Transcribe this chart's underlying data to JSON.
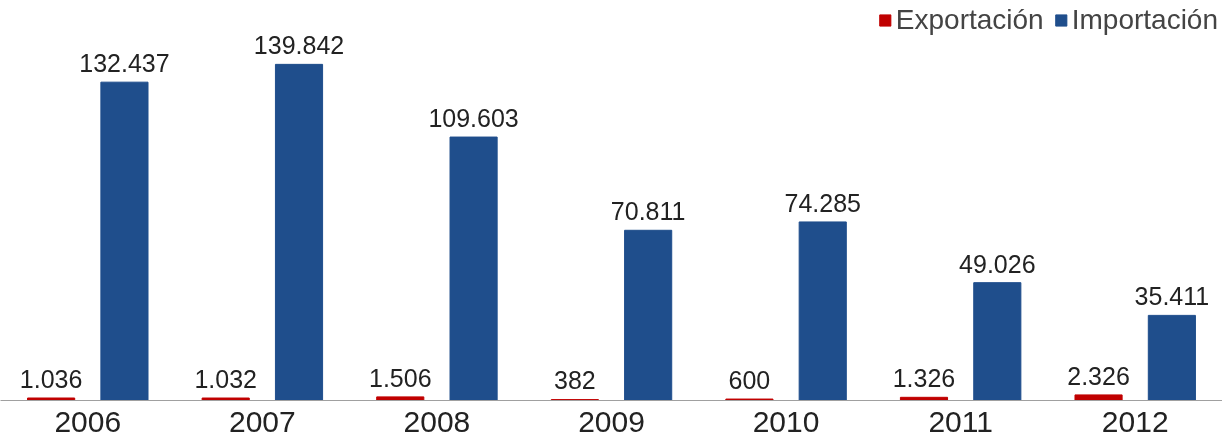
{
  "chart_data": {
    "type": "bar",
    "categories": [
      "2006",
      "2007",
      "2008",
      "2009",
      "2010",
      "2011",
      "2012"
    ],
    "series": [
      {
        "name": "Exportación",
        "color": "#c00000",
        "values": [
          1036,
          1032,
          1506,
          382,
          600,
          1326,
          2326
        ],
        "value_labels": [
          "1.036",
          "1.032",
          "1.506",
          "382",
          "600",
          "1.326",
          "2.326"
        ]
      },
      {
        "name": "Importación",
        "color": "#1f4e8c",
        "values": [
          132437,
          139842,
          109603,
          70811,
          74285,
          49026,
          35411
        ],
        "value_labels": [
          "132.437",
          "139.842",
          "109.603",
          "70.811",
          "74.285",
          "49.026",
          "35.411"
        ]
      }
    ],
    "legend": "top right",
    "grid": false
  }
}
